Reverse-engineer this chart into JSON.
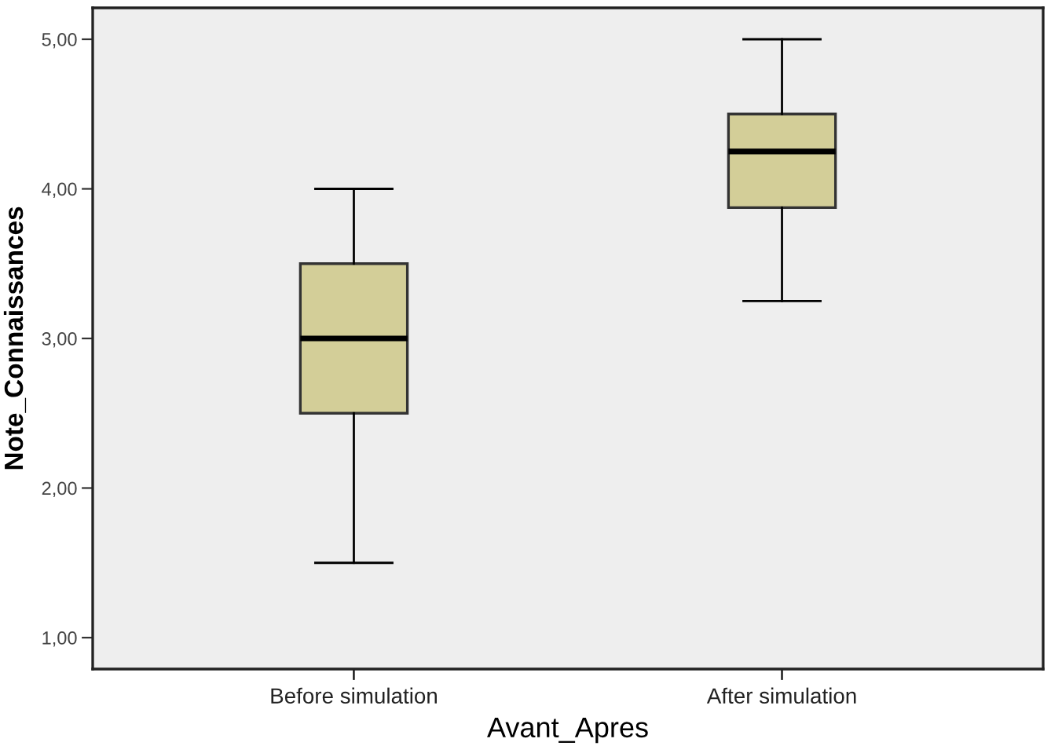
{
  "chart_data": {
    "type": "box",
    "xlabel": "Avant_Apres",
    "ylabel": "Note_Connaissances",
    "categories": [
      "Before simulation",
      "After simulation"
    ],
    "boxes": [
      {
        "low": 1.5,
        "q1": 2.5,
        "median": 3.0,
        "q3": 3.5,
        "high": 4.0
      },
      {
        "low": 3.25,
        "q1": 3.875,
        "median": 4.25,
        "q3": 4.5,
        "high": 5.0
      }
    ],
    "color": "#d3ce98",
    "ylim": [
      0.79,
      5.21
    ],
    "yticks": [
      {
        "value": 1,
        "label": "1,00"
      },
      {
        "value": 2,
        "label": "2,00"
      },
      {
        "value": 3,
        "label": "3,00"
      },
      {
        "value": 4,
        "label": "4,00"
      },
      {
        "value": 5,
        "label": "5,00"
      }
    ],
    "grid": false,
    "legend": false
  }
}
